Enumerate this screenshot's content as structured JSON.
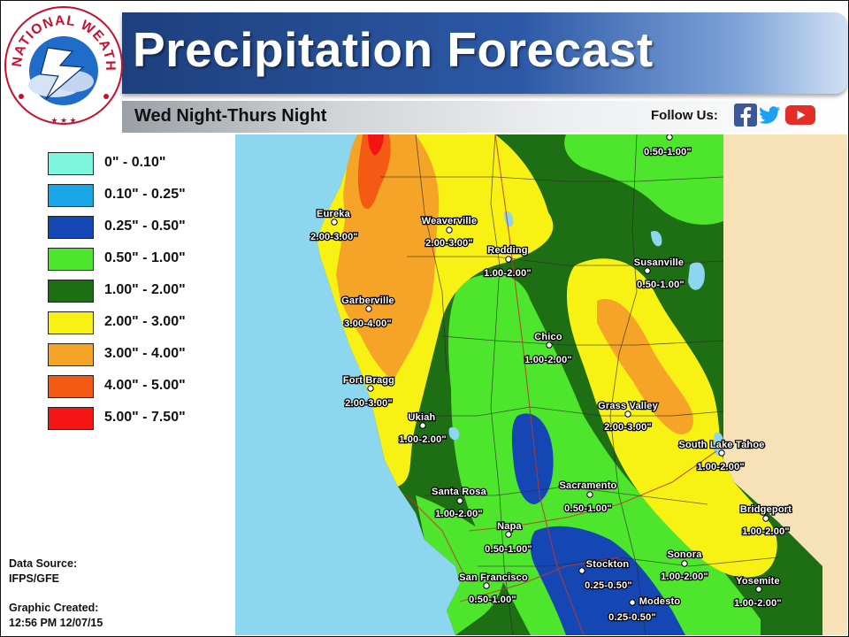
{
  "header": {
    "title": "Precipitation Forecast",
    "subtitle": "Wed Night-Thurs Night",
    "follow_label": "Follow Us:",
    "social": [
      "facebook-icon",
      "twitter-icon",
      "youtube-icon"
    ]
  },
  "logo": {
    "text": "NATIONAL WEATHER SERVICE"
  },
  "legend": {
    "items": [
      {
        "label": "0\" - 0.10\"",
        "color": "#7cf7dc"
      },
      {
        "label": "0.10\" - 0.25\"",
        "color": "#1aa6e6"
      },
      {
        "label": "0.25\" - 0.50\"",
        "color": "#1446b4"
      },
      {
        "label": "0.50\" - 1.00\"",
        "color": "#4ee62c"
      },
      {
        "label": "1.00\" - 2.00\"",
        "color": "#1e6e14"
      },
      {
        "label": "2.00\" - 3.00\"",
        "color": "#f8f214"
      },
      {
        "label": "3.00\" - 4.00\"",
        "color": "#f6a428"
      },
      {
        "label": "4.00\" - 5.00\"",
        "color": "#f45a14"
      },
      {
        "label": "5.00\" - 7.50\"",
        "color": "#f41414"
      }
    ]
  },
  "info": {
    "source_label": "Data Source:",
    "source_value": "IFPS/GFE",
    "created_label": "Graphic Created:",
    "created_value": "12:56 PM 12/07/15"
  },
  "map": {
    "colors": {
      "ocean": "#8cd6f0",
      "nevada": "#f7e1b6",
      "lake": "#8cd6f0"
    },
    "cities": [
      {
        "name": "",
        "amount": "0.50-1.00\""
      },
      {
        "name": "Eureka",
        "amount": "2.00-3.00\""
      },
      {
        "name": "Weaverville",
        "amount": "2.00-3.00\""
      },
      {
        "name": "Redding",
        "amount": "1.00-2.00\""
      },
      {
        "name": "Susanville",
        "amount": "0.50-1.00\""
      },
      {
        "name": "Garberville",
        "amount": "3.00-4.00\""
      },
      {
        "name": "Chico",
        "amount": "1.00-2.00\""
      },
      {
        "name": "Fort Bragg",
        "amount": "2.00-3.00\""
      },
      {
        "name": "Grass Valley",
        "amount": "2.00-3.00\""
      },
      {
        "name": "Ukiah",
        "amount": "1.00-2.00\""
      },
      {
        "name": "South Lake Tahoe",
        "amount": "1.00-2.00\""
      },
      {
        "name": "Sacramento",
        "amount": "0.50-1.00\""
      },
      {
        "name": "Santa Rosa",
        "amount": "1.00-2.00\""
      },
      {
        "name": "Bridgeport",
        "amount": "1.00-2.00\""
      },
      {
        "name": "Napa",
        "amount": "0.50-1.00\""
      },
      {
        "name": "Stockton",
        "amount": "0.25-0.50\""
      },
      {
        "name": "Sonora",
        "amount": "1.00-2.00\""
      },
      {
        "name": "San Francisco",
        "amount": "0.50-1.00\""
      },
      {
        "name": "Yosemite",
        "amount": "1.00-2.00\""
      },
      {
        "name": "Modesto",
        "amount": "0.25-0.50\""
      }
    ]
  }
}
